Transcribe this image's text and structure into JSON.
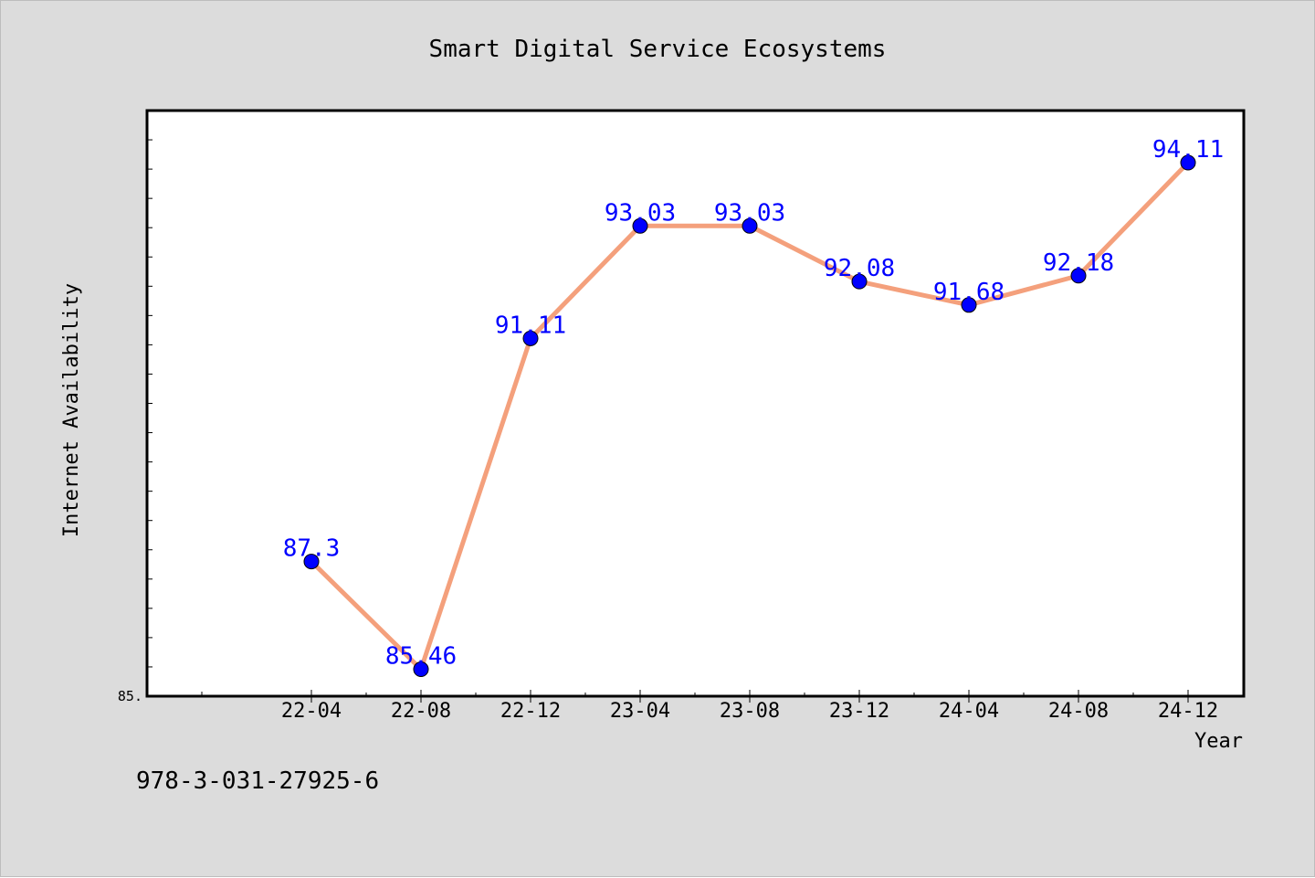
{
  "colors": {
    "background": "#dcdcdc",
    "plot_background": "#ffffff",
    "line": "#f4a07c",
    "marker": "#0000ff",
    "data_label": "#0000ff"
  },
  "footer": {
    "isbn": "978-3-031-27925-6"
  },
  "chart_data": {
    "type": "line",
    "title": "Smart Digital Service Ecosystems",
    "xlabel": "Year",
    "ylabel": "Internet Availability",
    "categories": [
      "22-04",
      "22-08",
      "22-12",
      "23-04",
      "23-08",
      "23-12",
      "24-04",
      "24-08",
      "24-12"
    ],
    "series": [
      {
        "values": [
          87.3,
          85.46,
          91.11,
          93.03,
          93.03,
          92.08,
          91.68,
          92.18,
          94.11
        ],
        "labels": [
          "87.3",
          "85.46",
          "91.11",
          "93.03",
          "93.03",
          "92.08",
          "91.68",
          "92.18",
          "94.11"
        ]
      }
    ],
    "y_tick_labels": [
      "85."
    ],
    "ylim": [
      85.0,
      95.0
    ],
    "grid": false,
    "legend": "none"
  }
}
